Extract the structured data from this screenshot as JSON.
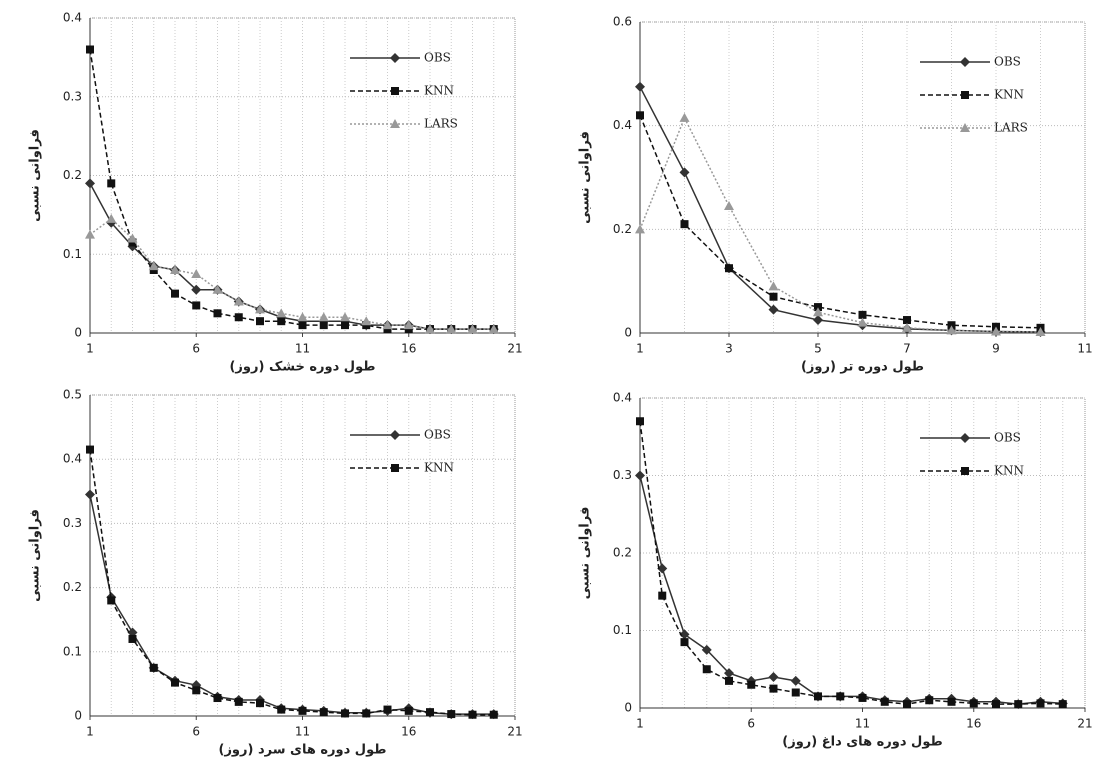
{
  "chart_data": [
    {
      "type": "line",
      "x_label": "طول دوره خشک (روز)",
      "y_label": "فراوانی نسبی",
      "x": [
        1,
        2,
        3,
        4,
        5,
        6,
        7,
        8,
        9,
        10,
        11,
        12,
        13,
        14,
        15,
        16,
        17,
        18,
        19,
        20
      ],
      "xlim": [
        1,
        21
      ],
      "xticks": [
        1,
        6,
        11,
        16,
        21
      ],
      "ylim": [
        0,
        0.4
      ],
      "yticks": [
        0,
        0.1,
        0.2,
        0.3,
        0.4
      ],
      "grid": true,
      "legend": "upper right",
      "series": [
        {
          "name": "OBS",
          "color": "#333333",
          "marker": "diamond",
          "dash": "solid",
          "values": [
            0.19,
            0.14,
            0.11,
            0.085,
            0.08,
            0.055,
            0.055,
            0.04,
            0.03,
            0.02,
            0.015,
            0.015,
            0.015,
            0.01,
            0.01,
            0.01,
            0.005,
            0.005,
            0.005,
            0.005
          ]
        },
        {
          "name": "KNN",
          "color": "#111111",
          "marker": "square",
          "dash": "dashed",
          "values": [
            0.36,
            0.19,
            0.115,
            0.08,
            0.05,
            0.035,
            0.025,
            0.02,
            0.015,
            0.015,
            0.01,
            0.01,
            0.01,
            0.01,
            0.005,
            0.005,
            0.005,
            0.005,
            0.005,
            0.005
          ]
        },
        {
          "name": "LARS",
          "color": "#999999",
          "marker": "triangle",
          "dash": "dotted",
          "values": [
            0.125,
            0.145,
            0.12,
            0.085,
            0.08,
            0.075,
            0.055,
            0.04,
            0.03,
            0.025,
            0.02,
            0.02,
            0.02,
            0.015,
            0.01,
            0.01,
            0.005,
            0.005,
            0.005,
            0.005
          ]
        }
      ]
    },
    {
      "type": "line",
      "x_label": "طول دوره تر (روز)",
      "y_label": "فراوانی نسبی",
      "x": [
        1,
        2,
        3,
        4,
        5,
        6,
        7,
        8,
        9,
        10
      ],
      "xlim": [
        1,
        11
      ],
      "xticks": [
        1,
        3,
        5,
        7,
        9,
        11
      ],
      "ylim": [
        0,
        0.6
      ],
      "yticks": [
        0,
        0.2,
        0.4,
        0.6
      ],
      "grid": true,
      "legend": "upper right",
      "series": [
        {
          "name": "OBS",
          "color": "#333333",
          "marker": "diamond",
          "dash": "solid",
          "values": [
            0.475,
            0.31,
            0.125,
            0.045,
            0.025,
            0.015,
            0.008,
            0.005,
            0.003,
            0.002
          ]
        },
        {
          "name": "KNN",
          "color": "#111111",
          "marker": "square",
          "dash": "dashed",
          "values": [
            0.42,
            0.21,
            0.125,
            0.07,
            0.05,
            0.035,
            0.025,
            0.015,
            0.012,
            0.01
          ]
        },
        {
          "name": "LARS",
          "color": "#999999",
          "marker": "triangle",
          "dash": "dotted",
          "values": [
            0.2,
            0.415,
            0.245,
            0.09,
            0.04,
            0.02,
            0.01,
            0.005,
            0.003,
            0.002
          ]
        }
      ]
    },
    {
      "type": "line",
      "x_label": "طول دوره های سرد (روز)",
      "y_label": "فراوانی نسبی",
      "x": [
        1,
        2,
        3,
        4,
        5,
        6,
        7,
        8,
        9,
        10,
        11,
        12,
        13,
        14,
        15,
        16,
        17,
        18,
        19,
        20
      ],
      "xlim": [
        1,
        21
      ],
      "xticks": [
        1,
        6,
        11,
        16,
        21
      ],
      "ylim": [
        0,
        0.5
      ],
      "yticks": [
        0,
        0.1,
        0.2,
        0.3,
        0.4,
        0.5
      ],
      "grid": true,
      "legend": "upper right",
      "series": [
        {
          "name": "OBS",
          "color": "#333333",
          "marker": "diamond",
          "dash": "solid",
          "values": [
            0.345,
            0.185,
            0.13,
            0.075,
            0.055,
            0.048,
            0.03,
            0.025,
            0.025,
            0.012,
            0.01,
            0.008,
            0.005,
            0.005,
            0.008,
            0.012,
            0.005,
            0.003,
            0.003,
            0.003
          ]
        },
        {
          "name": "KNN",
          "color": "#111111",
          "marker": "square",
          "dash": "dashed",
          "values": [
            0.415,
            0.18,
            0.12,
            0.075,
            0.052,
            0.04,
            0.028,
            0.022,
            0.02,
            0.01,
            0.008,
            0.006,
            0.004,
            0.004,
            0.01,
            0.008,
            0.006,
            0.003,
            0.002,
            0.002
          ]
        }
      ]
    },
    {
      "type": "line",
      "x_label": "طول دوره های داغ (روز)",
      "y_label": "فراوانی نسبی",
      "x": [
        1,
        2,
        3,
        4,
        5,
        6,
        7,
        8,
        9,
        10,
        11,
        12,
        13,
        14,
        15,
        16,
        17,
        18,
        19,
        20
      ],
      "xlim": [
        1,
        21
      ],
      "xticks": [
        1,
        6,
        11,
        16,
        21
      ],
      "ylim": [
        0,
        0.4
      ],
      "yticks": [
        0,
        0.1,
        0.2,
        0.3,
        0.4
      ],
      "grid": true,
      "legend": "upper right",
      "series": [
        {
          "name": "OBS",
          "color": "#333333",
          "marker": "diamond",
          "dash": "solid",
          "values": [
            0.3,
            0.18,
            0.095,
            0.075,
            0.045,
            0.035,
            0.04,
            0.035,
            0.015,
            0.015,
            0.015,
            0.01,
            0.008,
            0.012,
            0.012,
            0.008,
            0.008,
            0.005,
            0.008,
            0.006
          ]
        },
        {
          "name": "KNN",
          "color": "#111111",
          "marker": "square",
          "dash": "dashed",
          "values": [
            0.37,
            0.145,
            0.085,
            0.05,
            0.035,
            0.03,
            0.025,
            0.02,
            0.015,
            0.015,
            0.013,
            0.008,
            0.005,
            0.01,
            0.008,
            0.006,
            0.005,
            0.005,
            0.006,
            0.005
          ]
        }
      ]
    }
  ]
}
